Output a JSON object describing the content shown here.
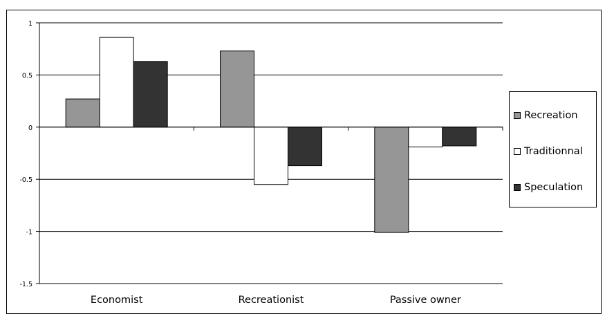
{
  "chart_data": {
    "type": "bar",
    "categories": [
      "Economist",
      "Recreationist",
      "Passive owner"
    ],
    "series": [
      {
        "name": "Recreation",
        "values": [
          0.27,
          0.73,
          -1.01
        ],
        "color": "#969696"
      },
      {
        "name": "Traditionnal",
        "values": [
          0.86,
          -0.55,
          -0.19
        ],
        "color": "#ffffff"
      },
      {
        "name": "Speculation",
        "values": [
          0.63,
          -0.37,
          -0.18
        ],
        "color": "#333333"
      }
    ],
    "ylim": [
      -1.5,
      1
    ],
    "yticks": [
      1,
      0.5,
      0,
      -0.5,
      -1,
      -1.5
    ],
    "ytick_labels": [
      "1",
      "0.5",
      "0",
      "-0.5",
      "-1",
      "-1.5"
    ],
    "grid": true,
    "legend_position": "right"
  }
}
